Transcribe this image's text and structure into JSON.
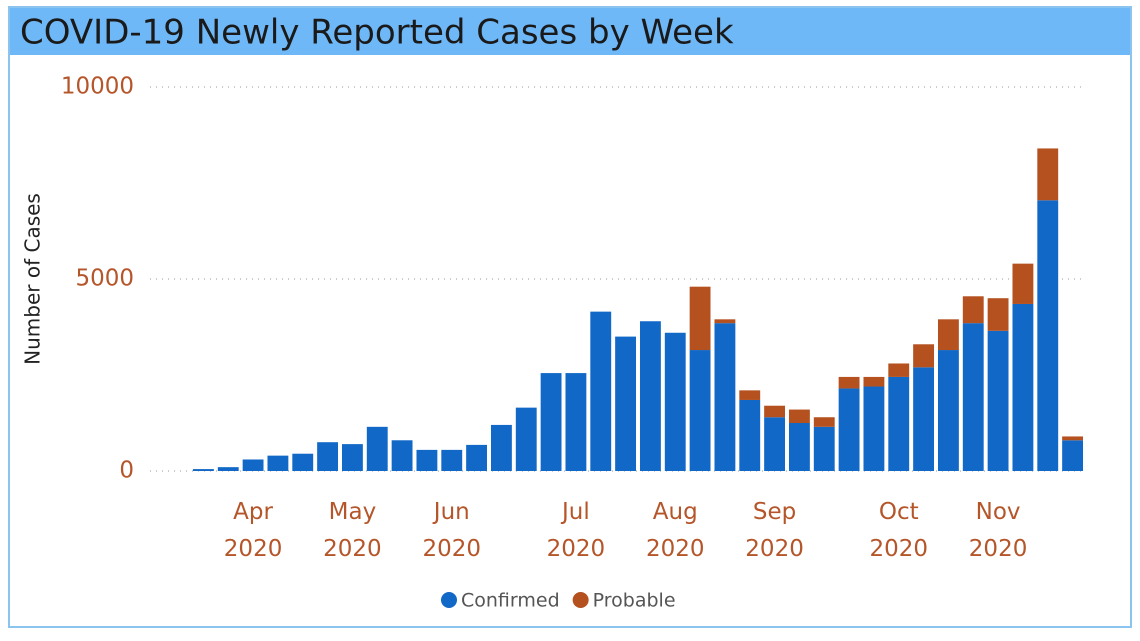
{
  "chart_data": {
    "type": "stacked_bar",
    "title": "COVID-19 Newly Reported Cases by Week",
    "y_label": "Number of Cases",
    "categories": [
      null,
      null,
      "Apr 2020",
      null,
      null,
      null,
      "May 2020",
      null,
      null,
      null,
      "Jun 2020",
      null,
      null,
      null,
      null,
      "Jul 2020",
      null,
      null,
      null,
      "Aug 2020",
      null,
      null,
      null,
      "Sep 2020",
      null,
      null,
      null,
      null,
      "Oct 2020",
      null,
      null,
      null,
      "Nov 2020",
      null,
      null,
      null
    ],
    "series": [
      {
        "name": "Confirmed",
        "color": "#1168c6",
        "values": [
          50,
          100,
          300,
          400,
          450,
          750,
          700,
          1150,
          800,
          550,
          550,
          680,
          1200,
          1650,
          2550,
          2550,
          4150,
          3500,
          3900,
          3600,
          3150,
          3850,
          1850,
          1400,
          1250,
          1150,
          2150,
          2200,
          2450,
          2700,
          3150,
          3850,
          3650,
          4350,
          7050,
          800
        ]
      },
      {
        "name": "Probable",
        "color": "#b4511f",
        "values": [
          0,
          0,
          0,
          0,
          0,
          0,
          0,
          0,
          0,
          0,
          0,
          0,
          0,
          0,
          0,
          0,
          0,
          0,
          0,
          0,
          1650,
          100,
          250,
          300,
          350,
          250,
          300,
          250,
          350,
          600,
          800,
          700,
          850,
          1050,
          1350,
          100
        ]
      }
    ],
    "ylim": [
      0,
      10000
    ],
    "yticks": [
      0,
      5000,
      10000
    ],
    "grid": true,
    "legend": "bottom"
  }
}
